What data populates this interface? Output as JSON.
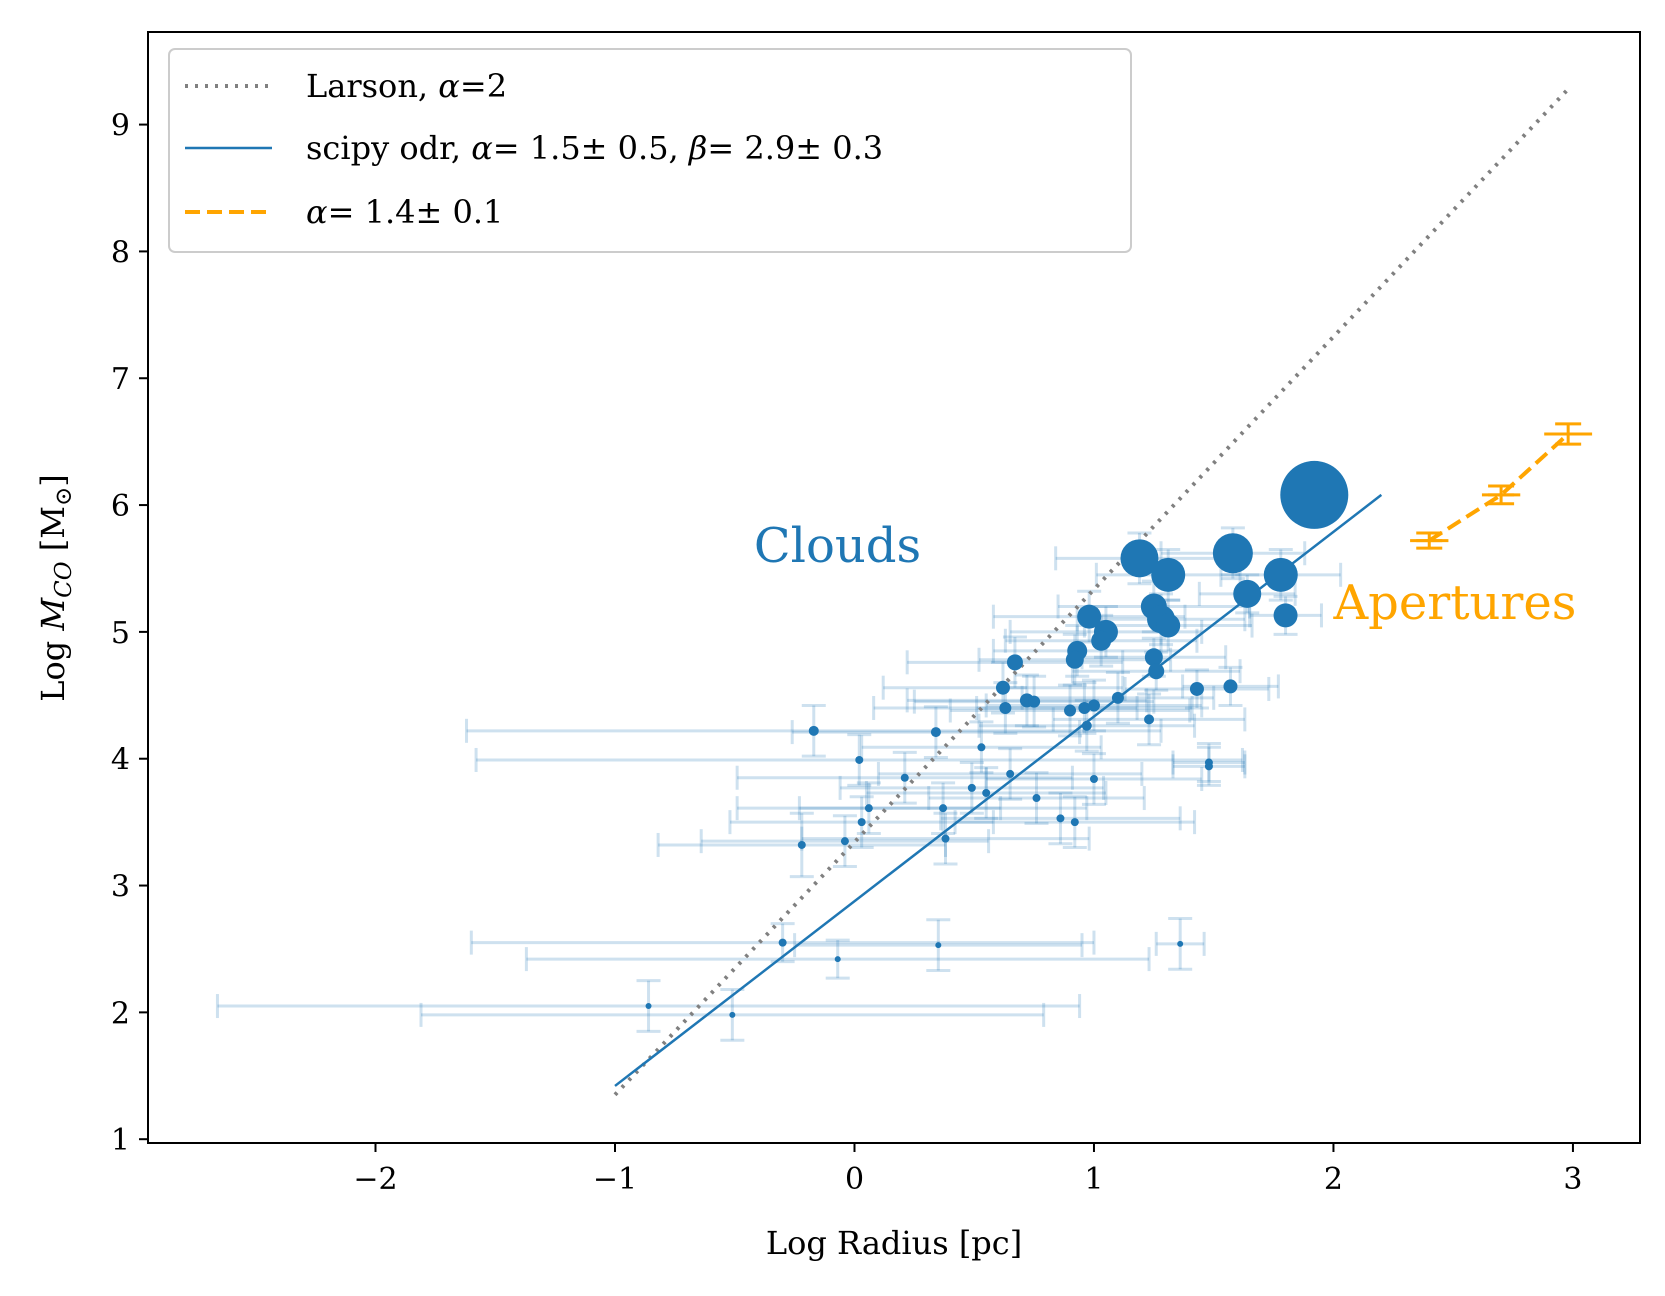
{
  "chart_data": {
    "type": "scatter",
    "xlabel": "Log Radius [pc]",
    "ylabel_parts": [
      "Log ",
      "M",
      "CO",
      " [M",
      "⊙",
      "]"
    ],
    "xlim": [
      -2.95,
      3.28
    ],
    "ylim": [
      0.97,
      9.73
    ],
    "xticks": [
      -2,
      -1,
      0,
      1,
      2,
      3
    ],
    "xtick_labels": [
      "−2",
      "−1",
      "0",
      "1",
      "2",
      "3"
    ],
    "yticks": [
      1,
      2,
      3,
      4,
      5,
      6,
      7,
      8,
      9
    ],
    "ytick_labels": [
      "1",
      "2",
      "3",
      "4",
      "5",
      "6",
      "7",
      "8",
      "9"
    ],
    "colors": {
      "clouds": "#1f77b4",
      "apertures": "#ffa500",
      "larson": "#808080"
    },
    "legend": {
      "position": "upper-left",
      "entries": [
        {
          "style": "dotted",
          "color": "#808080",
          "prefix": "Larson, ",
          "parts": [
            [
              "α",
              "italic"
            ],
            [
              "=2",
              "normal"
            ]
          ]
        },
        {
          "style": "solid",
          "color": "#1f77b4",
          "prefix": "scipy odr, ",
          "parts": [
            [
              "α",
              "italic"
            ],
            [
              "=  1.5±  0.5, ",
              "normal"
            ],
            [
              "β",
              "italic"
            ],
            [
              "=  2.9±  0.3",
              "normal"
            ]
          ]
        },
        {
          "style": "dashed",
          "color": "#ffa500",
          "prefix": "",
          "parts": [
            [
              "α",
              "italic"
            ],
            [
              "=  1.4±  0.1",
              "normal"
            ]
          ]
        }
      ]
    },
    "annotations": [
      {
        "text": "Clouds",
        "x": -0.42,
        "y": 5.55,
        "color": "#1f77b4"
      },
      {
        "text": "Apertures",
        "x": 2.0,
        "y": 5.1,
        "color": "#ffa500"
      }
    ],
    "larson_line": {
      "x": [
        -1.0,
        2.98
      ],
      "y": [
        1.35,
        9.28
      ]
    },
    "fit_line": {
      "x": [
        -1.0,
        2.2
      ],
      "y": [
        1.42,
        6.08
      ]
    },
    "apertures": {
      "points": [
        {
          "x": 2.4,
          "y": 5.72,
          "yerr": 0.06,
          "xerr": 0.08
        },
        {
          "x": 2.7,
          "y": 6.08,
          "yerr": 0.07,
          "xerr": 0.08
        },
        {
          "x": 2.98,
          "y": 6.56,
          "yerr": 0.08,
          "xerr": 0.1
        }
      ]
    },
    "clouds": {
      "points": [
        {
          "x": 1.92,
          "y": 6.08,
          "s": 34,
          "xerr": 0.12,
          "yerr": 0.2
        },
        {
          "x": 1.58,
          "y": 5.62,
          "s": 20,
          "xerr": 0.3,
          "yerr": 0.2
        },
        {
          "x": 1.19,
          "y": 5.58,
          "s": 19,
          "xerr": 0.35,
          "yerr": 0.2
        },
        {
          "x": 1.31,
          "y": 5.45,
          "s": 17,
          "xerr": 0.3,
          "yerr": 0.2
        },
        {
          "x": 1.78,
          "y": 5.45,
          "s": 17,
          "xerr": 0.25,
          "yerr": 0.2
        },
        {
          "x": 1.64,
          "y": 5.3,
          "s": 14,
          "xerr": 0.2,
          "yerr": 0.15
        },
        {
          "x": 1.25,
          "y": 5.2,
          "s": 13,
          "xerr": 0.4,
          "yerr": 0.2
        },
        {
          "x": 1.28,
          "y": 5.1,
          "s": 14,
          "xerr": 0.35,
          "yerr": 0.2
        },
        {
          "x": 1.8,
          "y": 5.13,
          "s": 12,
          "xerr": 0.15,
          "yerr": 0.15
        },
        {
          "x": 0.98,
          "y": 5.12,
          "s": 12,
          "xerr": 0.4,
          "yerr": 0.2
        },
        {
          "x": 1.05,
          "y": 5.0,
          "s": 12,
          "xerr": 0.4,
          "yerr": 0.2
        },
        {
          "x": 1.31,
          "y": 5.05,
          "s": 12,
          "xerr": 0.35,
          "yerr": 0.2
        },
        {
          "x": 1.03,
          "y": 4.93,
          "s": 10,
          "xerr": 0.4,
          "yerr": 0.2
        },
        {
          "x": 0.93,
          "y": 4.85,
          "s": 10,
          "xerr": 0.35,
          "yerr": 0.2
        },
        {
          "x": 1.25,
          "y": 4.8,
          "s": 9,
          "xerr": 0.3,
          "yerr": 0.15
        },
        {
          "x": 0.92,
          "y": 4.78,
          "s": 9,
          "xerr": 0.4,
          "yerr": 0.2
        },
        {
          "x": 0.67,
          "y": 4.76,
          "s": 8,
          "xerr": 0.45,
          "yerr": 0.2
        },
        {
          "x": 1.26,
          "y": 4.69,
          "s": 8,
          "xerr": 0.35,
          "yerr": 0.15
        },
        {
          "x": 0.62,
          "y": 4.56,
          "s": 7,
          "xerr": 0.5,
          "yerr": 0.2
        },
        {
          "x": 1.43,
          "y": 4.55,
          "s": 7,
          "xerr": 0.3,
          "yerr": 0.15
        },
        {
          "x": 1.57,
          "y": 4.57,
          "s": 7,
          "xerr": 0.2,
          "yerr": 0.15
        },
        {
          "x": 0.72,
          "y": 4.46,
          "s": 7,
          "xerr": 0.5,
          "yerr": 0.2
        },
        {
          "x": 0.75,
          "y": 4.45,
          "s": 6,
          "xerr": 0.5,
          "yerr": 0.2
        },
        {
          "x": 1.1,
          "y": 4.48,
          "s": 6,
          "xerr": 0.4,
          "yerr": 0.2
        },
        {
          "x": 0.63,
          "y": 4.4,
          "s": 6,
          "xerr": 0.55,
          "yerr": 0.2
        },
        {
          "x": 0.96,
          "y": 4.4,
          "s": 6,
          "xerr": 0.45,
          "yerr": 0.2
        },
        {
          "x": 1.0,
          "y": 4.42,
          "s": 6,
          "xerr": 0.45,
          "yerr": 0.2
        },
        {
          "x": 0.9,
          "y": 4.38,
          "s": 6,
          "xerr": 0.5,
          "yerr": 0.2
        },
        {
          "x": 1.23,
          "y": 4.31,
          "s": 5,
          "xerr": 0.4,
          "yerr": 0.2
        },
        {
          "x": 0.97,
          "y": 4.26,
          "s": 5,
          "xerr": 0.45,
          "yerr": 0.2
        },
        {
          "x": -0.17,
          "y": 4.22,
          "s": 5,
          "xerr": 1.45,
          "yerr": 0.2
        },
        {
          "x": 0.34,
          "y": 4.21,
          "s": 5,
          "xerr": 0.6,
          "yerr": 0.2
        },
        {
          "x": 0.53,
          "y": 4.09,
          "s": 4,
          "xerr": 0.5,
          "yerr": 0.2
        },
        {
          "x": 0.02,
          "y": 3.99,
          "s": 4,
          "xerr": 1.6,
          "yerr": 0.2
        },
        {
          "x": 1.48,
          "y": 3.97,
          "s": 4,
          "xerr": 0.15,
          "yerr": 0.15
        },
        {
          "x": 1.48,
          "y": 3.94,
          "s": 4,
          "xerr": 0.15,
          "yerr": 0.15
        },
        {
          "x": 0.65,
          "y": 3.88,
          "s": 4,
          "xerr": 0.55,
          "yerr": 0.2
        },
        {
          "x": 0.21,
          "y": 3.85,
          "s": 4,
          "xerr": 0.7,
          "yerr": 0.2
        },
        {
          "x": 1.0,
          "y": 3.84,
          "s": 4,
          "xerr": 0.45,
          "yerr": 0.2
        },
        {
          "x": 0.49,
          "y": 3.77,
          "s": 4,
          "xerr": 0.55,
          "yerr": 0.2
        },
        {
          "x": 0.55,
          "y": 3.73,
          "s": 4,
          "xerr": 0.5,
          "yerr": 0.2
        },
        {
          "x": 0.76,
          "y": 3.69,
          "s": 4,
          "xerr": 0.45,
          "yerr": 0.2
        },
        {
          "x": 0.06,
          "y": 3.61,
          "s": 4,
          "xerr": 0.55,
          "yerr": 0.2
        },
        {
          "x": 0.37,
          "y": 3.61,
          "s": 4,
          "xerr": 0.6,
          "yerr": 0.2
        },
        {
          "x": 0.86,
          "y": 3.53,
          "s": 4,
          "xerr": 0.5,
          "yerr": 0.2
        },
        {
          "x": 0.92,
          "y": 3.5,
          "s": 4,
          "xerr": 0.5,
          "yerr": 0.2
        },
        {
          "x": 0.03,
          "y": 3.5,
          "s": 4,
          "xerr": 0.55,
          "yerr": 0.2
        },
        {
          "x": 0.38,
          "y": 3.37,
          "s": 4,
          "xerr": 0.6,
          "yerr": 0.2
        },
        {
          "x": -0.04,
          "y": 3.35,
          "s": 4,
          "xerr": 0.6,
          "yerr": 0.2
        },
        {
          "x": -0.22,
          "y": 3.32,
          "s": 4,
          "xerr": 0.6,
          "yerr": 0.25
        },
        {
          "x": -0.3,
          "y": 2.55,
          "s": 4,
          "xerr": 1.3,
          "yerr": 0.15
        },
        {
          "x": 1.36,
          "y": 2.54,
          "s": 3,
          "xerr": 0.1,
          "yerr": 0.2
        },
        {
          "x": 0.35,
          "y": 2.53,
          "s": 3,
          "xerr": 0.6,
          "yerr": 0.2
        },
        {
          "x": -0.07,
          "y": 2.42,
          "s": 3,
          "xerr": 1.3,
          "yerr": 0.15
        },
        {
          "x": -0.86,
          "y": 2.05,
          "s": 3,
          "xerr": 1.8,
          "yerr": 0.2
        },
        {
          "x": -0.51,
          "y": 1.98,
          "s": 3,
          "xerr": 1.3,
          "yerr": 0.2
        }
      ]
    }
  }
}
